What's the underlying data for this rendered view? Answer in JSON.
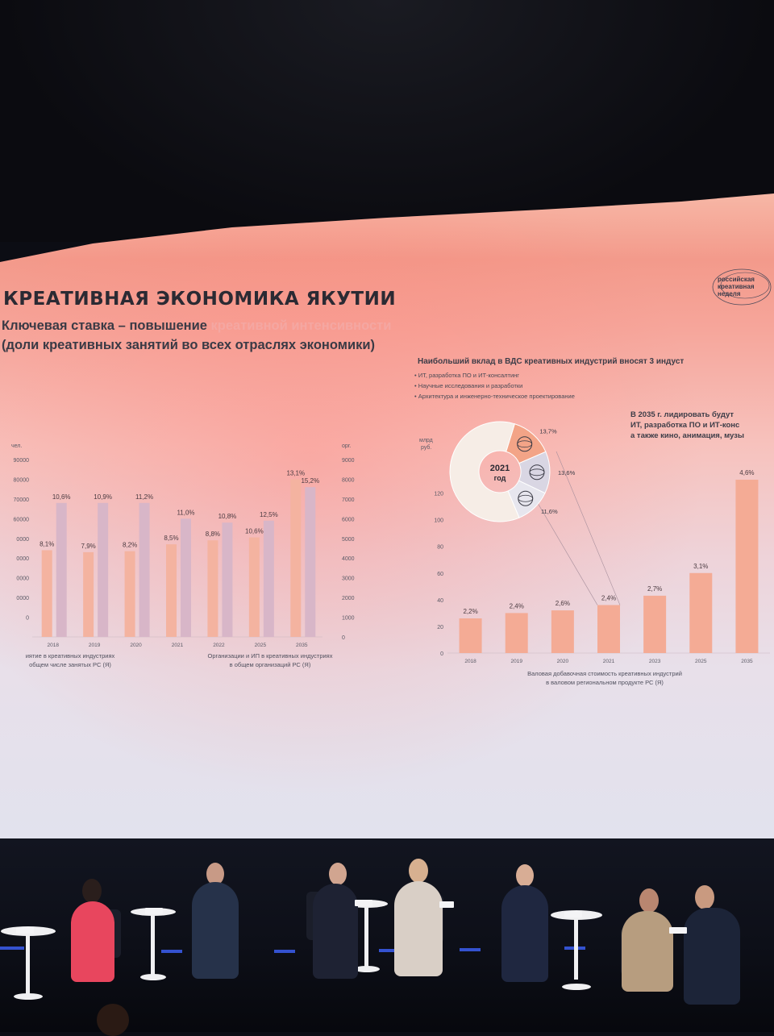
{
  "slide": {
    "title": "КРЕАТИВНАЯ ЭКОНОМИКА ЯКУТИИ",
    "subtitle_part1": "Ключевая ставка – повышение ",
    "subtitle_highlight": "креативной интенсивности",
    "subtitle_line2": "(доли креативных занятий во всех отраслях экономики)",
    "logo_lines": [
      "российская",
      "креативная",
      "неделя"
    ],
    "annotation_title": "Наибольший вклад в ВДС креативных индустрий вносят 3 индуст",
    "bullets": [
      "ИТ, разработка ПО и ИТ-консалтинг",
      "Научные исследования и разработки",
      "Архитектура и инженерно-техническое проектирование"
    ],
    "note_lines": [
      "В 2035 г. лидировать будут",
      "ИТ, разработка ПО и ИТ-конс",
      "а также кино, анимация, музы"
    ]
  },
  "donut": {
    "center_label_line1": "2021",
    "center_label_line2": "год",
    "labels": [
      "13,7%",
      "13,6%",
      "11,6%"
    ],
    "icons": [
      "globe-icon",
      "atom-icon",
      "rings-icon"
    ]
  },
  "chart_data": [
    {
      "type": "bar",
      "categories": [
        "2018",
        "2019",
        "2020",
        "2021",
        "2022",
        "2025",
        "2035"
      ],
      "series": [
        {
          "name": "",
          "values": [
            44000,
            43000,
            43500,
            47000,
            49000,
            50500,
            80000
          ],
          "labels": [
            "8,1%",
            "7,9%",
            "8,2%",
            "8,5%",
            "8,8%",
            "10,6%",
            "13,1%"
          ],
          "color": "#f4b3a0"
        },
        {
          "name": "",
          "values": [
            6800,
            6800,
            6800,
            6000,
            5800,
            5900,
            7600
          ],
          "labels": [
            "10,6%",
            "10,9%",
            "11,2%",
            "11,0%",
            "10,8%",
            "12,5%",
            "15,2%"
          ],
          "color": "#d8b6c8"
        }
      ],
      "yleft_unit": "чел.",
      "yleft_ticks": [
        "0",
        "10000",
        "20000",
        "30000",
        "40000",
        "50000",
        "60000",
        "70000",
        "80000",
        "90000"
      ],
      "yleft_ticks_visible": [
        "0",
        "0000",
        "0000",
        "0000",
        "0000",
        "60000",
        "70000",
        "80000",
        "90000"
      ],
      "yright_unit": "орг.",
      "yright_ticks": [
        "0",
        "1000",
        "2000",
        "3000",
        "4000",
        "5000",
        "6000",
        "7000",
        "8000",
        "9000"
      ],
      "ylim_left": [
        0,
        90000
      ],
      "ylim_right": [
        0,
        9000
      ],
      "caption_left": [
        "иятие в креативных индустриях",
        "общем числе занятых РС (Я)"
      ],
      "caption_right": [
        "Организации и ИП в креативных индустриях",
        "в общем организаций РС (Я)"
      ]
    },
    {
      "type": "bar",
      "categories": [
        "2018",
        "2019",
        "2020",
        "2021",
        "2023",
        "2025",
        "2035"
      ],
      "values": [
        26,
        30,
        32,
        36,
        43,
        60,
        130
      ],
      "labels": [
        "2,2%",
        "2,4%",
        "2,6%",
        "2,4%",
        "2,7%",
        "3,1%",
        "4,6%"
      ],
      "color": "#f4ab95",
      "unit": "млрд руб.",
      "y_ticks": [
        "0",
        "20",
        "40",
        "60",
        "80",
        "100",
        "120"
      ],
      "ylim": [
        0,
        130
      ],
      "caption": [
        "Валовая добавочная стоимость креативных индустрий",
        "в валовом региональном продукте РС (Я)"
      ]
    },
    {
      "type": "pie",
      "categories": [
        "ИТ, разработка ПО и ИТ-консалтинг",
        "Научные исследования и разработки",
        "Архитектура и инженерно-техническое проектирование",
        ""
      ],
      "values": [
        13.7,
        13.6,
        11.6,
        61.1
      ],
      "labels": [
        "13,7%",
        "13,6%",
        "11,6%"
      ],
      "colors": [
        "#f3a487",
        "#d9d6e3",
        "#e7e6ee",
        "#f6ede6"
      ],
      "center_label": "2021 год"
    }
  ]
}
